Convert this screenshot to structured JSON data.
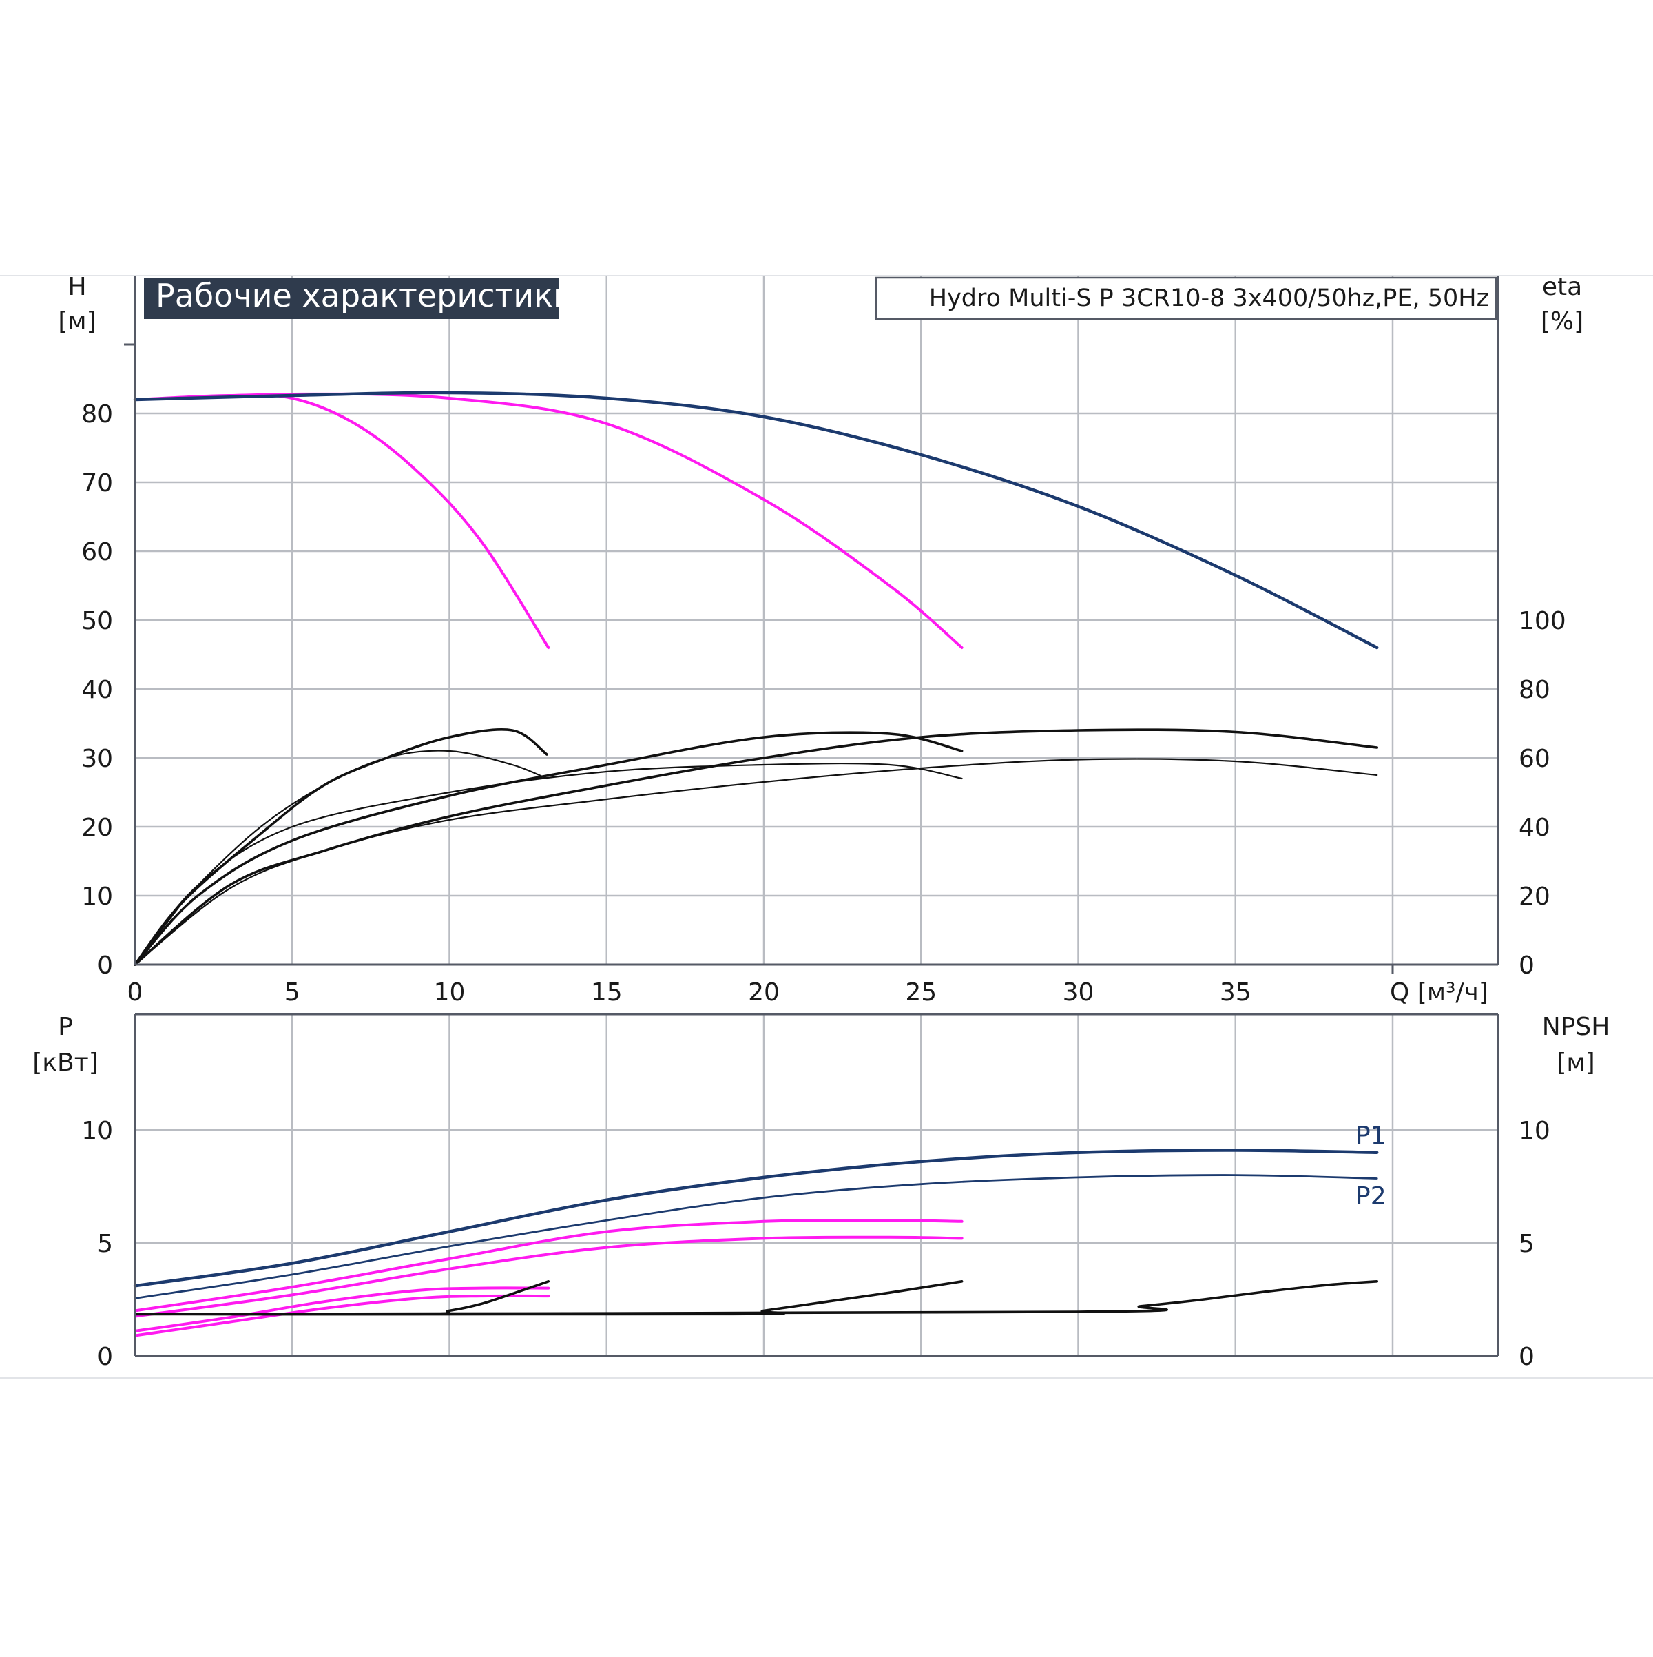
{
  "colors": {
    "navy": "#1c3a6e",
    "magenta": "#ff1af0",
    "black": "#111111",
    "title_bg": "#2f3b4d",
    "title_fg": "#ffffff",
    "grid": "#b9bcc2"
  },
  "chart_data": [
    {
      "type": "line",
      "title": "Рабочие характеристики",
      "subtitle": "Hydro Multi-S P 3CR10-8 3x400/50hz,PE, 50Hz",
      "xlabel": "Q [м³/ч]",
      "ylabel": [
        "H",
        "[м]"
      ],
      "y2label": [
        "eta",
        "[%]"
      ],
      "xlim": [
        0,
        43.5
      ],
      "ylim": [
        0,
        90
      ],
      "y2_scale": "eta = 2 × H",
      "x_ticks": [
        0,
        5,
        10,
        15,
        20,
        25,
        30,
        35
      ],
      "y_ticks": [
        0,
        10,
        20,
        30,
        40,
        50,
        60,
        70,
        80
      ],
      "y2_ticks": [
        0,
        20,
        40,
        60,
        80,
        100
      ],
      "grid": true,
      "series": [
        {
          "group": "head",
          "color": "magenta",
          "x": [
            0,
            3,
            5,
            7,
            9,
            11,
            13.15
          ],
          "y": [
            82,
            82.6,
            82.2,
            78.5,
            71.5,
            61.5,
            46
          ]
        },
        {
          "group": "head",
          "color": "magenta",
          "x": [
            0,
            5,
            10,
            15,
            20,
            24,
            26.3
          ],
          "y": [
            82,
            82.8,
            82.2,
            78.5,
            67.5,
            55,
            46
          ]
        },
        {
          "group": "head",
          "color": "navy",
          "x": [
            0,
            5,
            10,
            15,
            20,
            25,
            30,
            35,
            39.5
          ],
          "y": [
            82,
            82.6,
            83,
            82.2,
            79.5,
            74,
            66.5,
            56.5,
            46
          ]
        },
        {
          "group": "eta",
          "color": "black",
          "x": [
            0,
            1,
            2,
            4,
            6,
            8,
            10,
            12,
            13.1
          ],
          "y": [
            0,
            12,
            23,
            40,
            52,
            60,
            62,
            58,
            54
          ]
        },
        {
          "group": "eta",
          "color": "black",
          "x": [
            0,
            1.5,
            4,
            6,
            8,
            10,
            12,
            13.1
          ],
          "y": [
            0,
            18,
            38,
            52,
            60,
            66,
            68,
            61
          ]
        },
        {
          "group": "eta",
          "color": "black",
          "x": [
            0,
            2,
            5,
            10,
            15,
            20,
            24,
            26.3
          ],
          "y": [
            0,
            23,
            40,
            50,
            56,
            58,
            58,
            54
          ]
        },
        {
          "group": "eta",
          "color": "black",
          "x": [
            0,
            2,
            5,
            10,
            15,
            20,
            24,
            26.3
          ],
          "y": [
            0,
            20,
            36,
            49,
            58,
            66,
            67,
            62
          ]
        },
        {
          "group": "eta",
          "color": "black",
          "x": [
            0,
            3,
            6,
            10,
            15,
            20,
            25,
            30,
            35,
            39.5
          ],
          "y": [
            0,
            22,
            33,
            42,
            48,
            53,
            57,
            59.5,
            59,
            55
          ]
        },
        {
          "group": "eta",
          "color": "black",
          "x": [
            0,
            3,
            6,
            10,
            15,
            20,
            25,
            30,
            35,
            39.5
          ],
          "y": [
            0,
            23,
            33,
            43,
            52,
            60,
            66,
            68,
            67.5,
            63
          ]
        }
      ]
    },
    {
      "type": "line",
      "xlabel": "",
      "ylabel": [
        "P",
        "[кВт]"
      ],
      "y2label": [
        "NPSH",
        "[м]"
      ],
      "xlim": [
        0,
        43.5
      ],
      "ylim": [
        0,
        15
      ],
      "y_ticks": [
        0,
        5,
        10
      ],
      "y2_ticks": [
        0,
        5,
        10
      ],
      "grid": true,
      "series": [
        {
          "name": "P1",
          "color": "navy",
          "x": [
            0,
            5,
            10,
            15,
            20,
            25,
            30,
            35,
            39.5
          ],
          "y": [
            3.1,
            4.1,
            5.5,
            6.9,
            7.9,
            8.6,
            9.0,
            9.1,
            9.0
          ]
        },
        {
          "name": "P2",
          "color": "navy",
          "x": [
            0,
            5,
            10,
            15,
            20,
            25,
            30,
            35,
            39.5
          ],
          "y": [
            2.55,
            3.6,
            4.85,
            6.0,
            7.0,
            7.6,
            7.9,
            8.0,
            7.85
          ]
        },
        {
          "group": "power",
          "color": "magenta",
          "x": [
            0,
            5,
            10,
            15,
            20,
            24,
            26.3
          ],
          "y": [
            2.0,
            3.05,
            4.3,
            5.5,
            5.95,
            6.0,
            5.95
          ]
        },
        {
          "group": "power",
          "color": "magenta",
          "x": [
            0,
            5,
            10,
            15,
            20,
            24,
            26.3
          ],
          "y": [
            1.75,
            2.7,
            3.85,
            4.8,
            5.2,
            5.25,
            5.2
          ]
        },
        {
          "group": "power",
          "color": "magenta",
          "x": [
            0,
            3,
            6,
            9,
            11,
            13.15
          ],
          "y": [
            1.1,
            1.7,
            2.4,
            2.9,
            3.0,
            3.0
          ]
        },
        {
          "group": "power",
          "color": "magenta",
          "x": [
            0,
            3,
            6,
            9,
            11,
            13.15
          ],
          "y": [
            0.9,
            1.5,
            2.1,
            2.55,
            2.65,
            2.65
          ]
        },
        {
          "group": "npsh",
          "color": "black",
          "x": [
            0,
            9,
            10,
            11,
            12,
            13.15
          ],
          "y": [
            1.85,
            1.85,
            2.0,
            2.3,
            2.75,
            3.3
          ]
        },
        {
          "group": "npsh",
          "color": "black",
          "x": [
            0,
            19,
            20,
            22,
            24,
            26.3
          ],
          "y": [
            1.85,
            1.85,
            2.0,
            2.4,
            2.8,
            3.3
          ]
        },
        {
          "group": "npsh",
          "color": "black",
          "x": [
            0,
            30,
            32,
            34,
            36,
            38,
            39.5
          ],
          "y": [
            1.85,
            1.95,
            2.2,
            2.5,
            2.85,
            3.15,
            3.3
          ]
        }
      ]
    }
  ]
}
